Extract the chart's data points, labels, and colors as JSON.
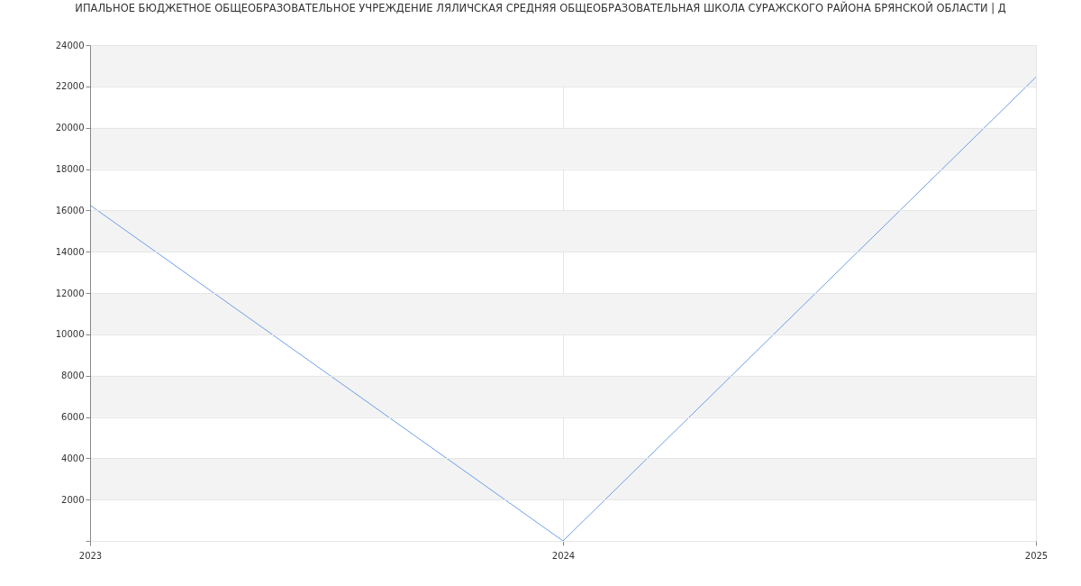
{
  "chart_data": {
    "type": "line",
    "title": "ИПАЛЬНОЕ БЮДЖЕТНОЕ ОБЩЕОБРАЗОВАТЕЛЬНОЕ УЧРЕЖДЕНИЕ ЛЯЛИЧСКАЯ СРЕДНЯЯ ОБЩЕОБРАЗОВАТЕЛЬНАЯ ШКОЛА СУРАЖСКОГО РАЙОНА БРЯНСКОЙ ОБЛАСТИ | Д",
    "x": [
      2023,
      2024,
      2025
    ],
    "series": [
      {
        "color": "#6d9eeb",
        "values": [
          16250,
          0,
          22450
        ]
      }
    ],
    "xlim": [
      2023,
      2025
    ],
    "xticks": [
      2023,
      2024,
      2025
    ],
    "ylim": [
      0,
      24000
    ],
    "yticks": [
      {
        "value": 0,
        "label": null
      },
      2000,
      4000,
      6000,
      8000,
      10000,
      12000,
      14000,
      16000,
      18000,
      20000,
      22000,
      24000
    ],
    "bands": [
      {
        "axis": "y",
        "from": 2000,
        "to": 4000,
        "color": "#f3f3f3"
      },
      {
        "axis": "y",
        "from": 6000,
        "to": 8000,
        "color": "#f3f3f3"
      },
      {
        "axis": "y",
        "from": 10000,
        "to": 12000,
        "color": "#f3f3f3"
      },
      {
        "axis": "y",
        "from": 14000,
        "to": 16000,
        "color": "#f3f3f3"
      },
      {
        "axis": "y",
        "from": 18000,
        "to": 20000,
        "color": "#f3f3f3"
      },
      {
        "axis": "y",
        "from": 22000,
        "to": 24000,
        "color": "#f3f3f3"
      }
    ],
    "grid": true,
    "marker": "none",
    "line_style": "solid",
    "legend": false
  }
}
